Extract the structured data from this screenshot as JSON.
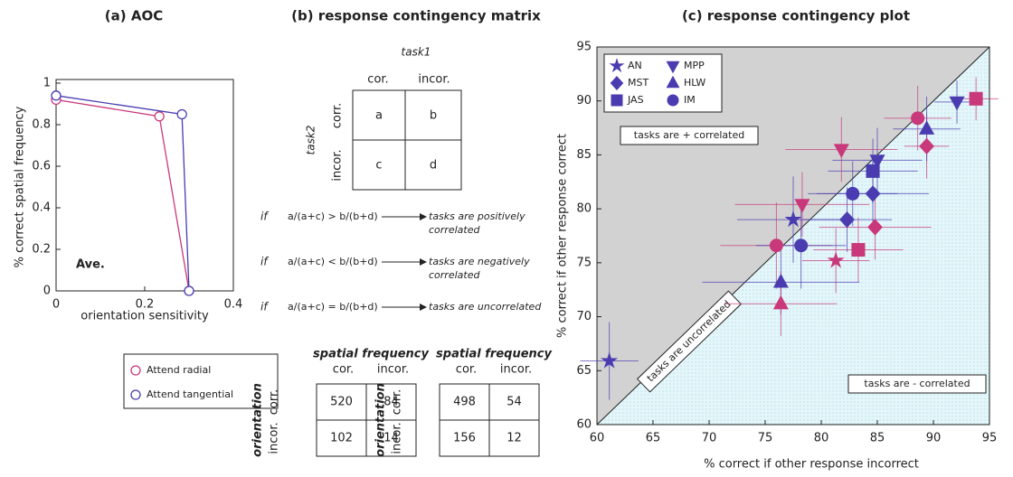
{
  "chart_data": [
    {
      "type": "line",
      "title": "(a) AOC",
      "xlabel": "orientation sensitivity",
      "ylabel": "% correct spatial frequency",
      "xlim": [
        0,
        0.4
      ],
      "ylim": [
        0,
        1
      ],
      "xticks": [
        0,
        0.2,
        0.4
      ],
      "yticks": [
        0,
        0.2,
        0.4,
        0.6,
        0.8,
        1
      ],
      "annotations": [
        "Ave."
      ],
      "series": [
        {
          "name": "Attend radial",
          "color": "#c8387a",
          "x": [
            0,
            0.233,
            0.3
          ],
          "values": [
            0.92,
            0.84,
            0
          ]
        },
        {
          "name": "Attend tangential",
          "color": "#4a3cb0",
          "x": [
            0,
            0.284,
            0.3
          ],
          "values": [
            0.94,
            0.85,
            0
          ]
        }
      ]
    },
    {
      "type": "scatter",
      "title": "(c) response contingency plot",
      "xlabel": "% correct if other response incorrect",
      "ylabel": "% correct if other response correct",
      "xlim": [
        60,
        95
      ],
      "ylim": [
        60,
        95
      ],
      "xticks": [
        60,
        65,
        70,
        75,
        80,
        85,
        90,
        95
      ],
      "yticks": [
        60,
        65,
        70,
        75,
        80,
        85,
        90,
        95
      ],
      "annotations": [
        "tasks are + correlated",
        "tasks are - correlated",
        "tasks are uncorrelated"
      ],
      "series": [
        {
          "name": "AN",
          "marker": "star",
          "color": "#4a3cb0",
          "colors": [
            "#4a3cb0",
            "#4a3cb0",
            "#c8387a"
          ],
          "x": [
            61.1,
            77.5,
            81.3
          ],
          "values": [
            65.9,
            79,
            75.2
          ],
          "xerr": [
            2.6,
            5,
            3
          ],
          "yerr": [
            3.6,
            4,
            3
          ]
        },
        {
          "name": "MST",
          "marker": "diamond",
          "color": "#4a3cb0",
          "colors": [
            "#4a3cb0",
            "#4a3cb0",
            "#c8387a",
            "#c8387a"
          ],
          "x": [
            82.3,
            84.6,
            84.8,
            89.4
          ],
          "values": [
            79,
            81.4,
            78.3,
            85.8
          ],
          "xerr": [
            4,
            5,
            5,
            2
          ],
          "yerr": [
            3,
            3,
            3,
            3
          ]
        },
        {
          "name": "JAS",
          "marker": "square",
          "color": "#4a3cb0",
          "colors": [
            "#4a3cb0",
            "#c8387a",
            "#c8387a"
          ],
          "x": [
            84.6,
            83.3,
            93.8
          ],
          "values": [
            83.5,
            76.2,
            90.2
          ],
          "xerr": [
            4,
            4,
            2
          ],
          "yerr": [
            3,
            3,
            2
          ]
        },
        {
          "name": "MPP",
          "marker": "down",
          "color": "#4a3cb0",
          "colors": [
            "#4a3cb0",
            "#c8387a",
            "#c8387a",
            "#4a3cb0"
          ],
          "x": [
            92.1,
            81.8,
            78.3,
            85
          ],
          "values": [
            89.9,
            85.5,
            80.4,
            84.5
          ],
          "xerr": [
            2,
            5,
            6,
            4
          ],
          "yerr": [
            2,
            3,
            3,
            3
          ]
        },
        {
          "name": "HLW",
          "marker": "up",
          "color": "#4a3cb0",
          "colors": [
            "#4a3cb0",
            "#c8387a",
            "#4a3cb0"
          ],
          "x": [
            76.4,
            76.4,
            89.4
          ],
          "values": [
            73.2,
            71.2,
            87.4
          ],
          "xerr": [
            7,
            5,
            3
          ],
          "yerr": [
            3,
            3,
            3
          ]
        },
        {
          "name": "IM",
          "marker": "circle",
          "color": "#4a3cb0",
          "colors": [
            "#c8387a",
            "#4a3cb0",
            "#4a3cb0",
            "#c8387a"
          ],
          "x": [
            76,
            78.2,
            82.8,
            88.6
          ],
          "values": [
            76.6,
            76.6,
            81.4,
            88.4
          ],
          "xerr": [
            5,
            4,
            4,
            3
          ],
          "yerr": [
            4,
            4,
            3,
            3
          ]
        }
      ]
    }
  ],
  "matrix": {
    "title": "(b) response contingency matrix",
    "task1": "task1",
    "task2": "task2",
    "columns": [
      "cor.",
      "incor."
    ],
    "rows": [
      "corr.",
      "incor."
    ],
    "cells": [
      [
        "a",
        "b"
      ],
      [
        "c",
        "d"
      ]
    ],
    "rules": [
      {
        "if": "if",
        "condition": "a/(a+c) > b/(b+d)",
        "result": [
          "tasks are positively",
          "correlated"
        ]
      },
      {
        "if": "if",
        "condition": "a/(a+c) < b/(b+d)",
        "result": [
          "tasks are negatively",
          "correlated"
        ]
      },
      {
        "if": "if",
        "condition": "a/(a+c) = b/(b+d)",
        "result": [
          "tasks are uncorrelated"
        ]
      }
    ],
    "tables": [
      {
        "column_title": "spatial frequency",
        "columns": [
          "cor.",
          "incor."
        ],
        "row_title": "orientation",
        "rows": [
          "corr.",
          "incor."
        ],
        "cells": [
          [
            520,
            84
          ],
          [
            102,
            14
          ]
        ]
      },
      {
        "column_title": "spatial frequency",
        "columns": [
          "cor.",
          "incor."
        ],
        "row_title": "orientation",
        "rows": [
          "corr.",
          "incor."
        ],
        "cells": [
          [
            498,
            54
          ],
          [
            156,
            12
          ]
        ]
      }
    ]
  }
}
